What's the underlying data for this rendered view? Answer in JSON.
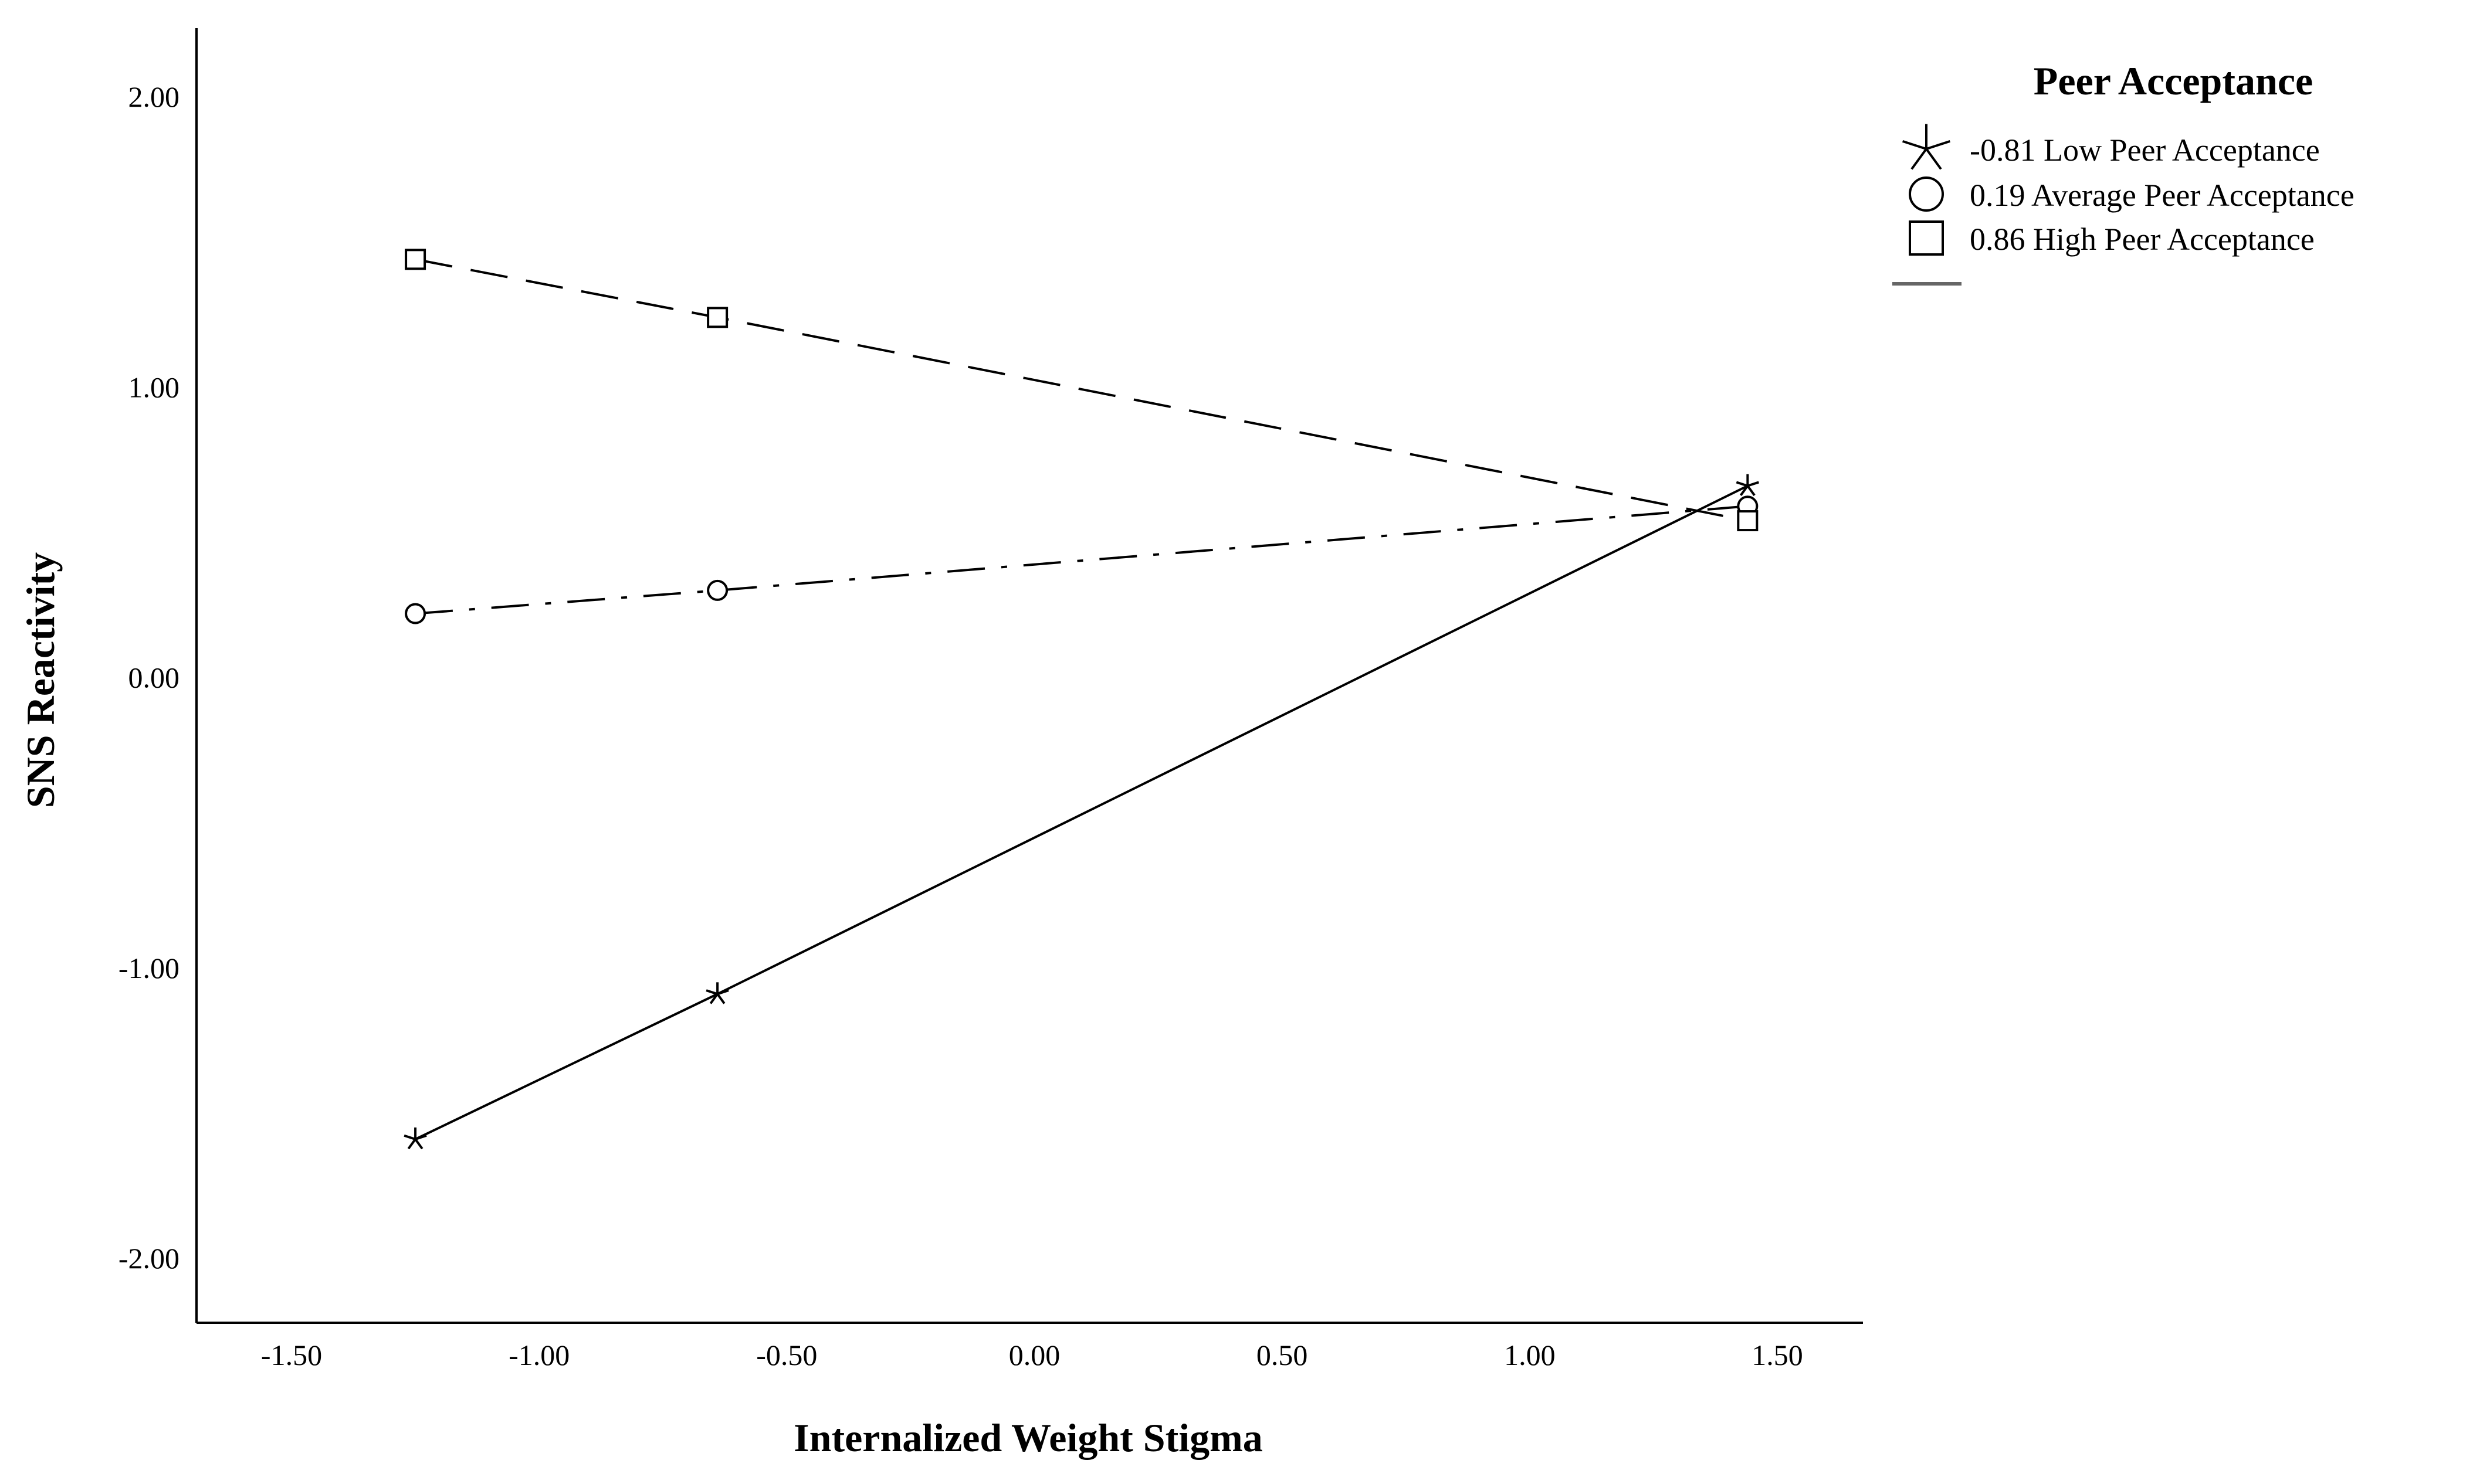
{
  "chart_data": {
    "type": "line",
    "title": "",
    "xlabel": "Internalized Weight Stigma",
    "ylabel": "SNS Reactivity",
    "xlim": [
      -1.5,
      1.5
    ],
    "ylim": [
      -2.0,
      2.0
    ],
    "x_ticks": [
      "-1.50",
      "-1.00",
      "-0.50",
      "0.00",
      "0.50",
      "1.00",
      "1.50"
    ],
    "y_ticks": [
      "2.00",
      "1.00",
      "0.00",
      "-1.00",
      "-2.00"
    ],
    "grid": false,
    "legend": {
      "title": "Peer Acceptance",
      "position": "top-right"
    },
    "series": [
      {
        "name": "-0.81 Low Peer Acceptance",
        "marker": "star",
        "line_style": "solid",
        "x": [
          -1.25,
          -0.64,
          1.44
        ],
        "y": [
          -1.59,
          -1.09,
          0.66
        ]
      },
      {
        "name": "0.19 Average Peer Acceptance",
        "marker": "circle",
        "line_style": "dash-dot",
        "x": [
          -1.25,
          -0.64,
          1.44
        ],
        "y": [
          0.22,
          0.3,
          0.59
        ]
      },
      {
        "name": "0.86 High Peer Acceptance",
        "marker": "square",
        "line_style": "dashed",
        "x": [
          -1.25,
          -0.64,
          1.44
        ],
        "y": [
          1.44,
          1.24,
          0.54
        ]
      }
    ],
    "colors": {
      "line": "#000000",
      "background": "#ffffff",
      "legend_extra_line": "#666666"
    }
  }
}
